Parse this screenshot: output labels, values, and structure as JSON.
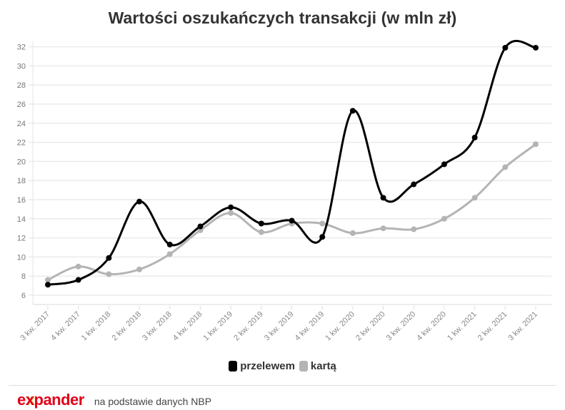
{
  "title": "Wartości oszukańczych transakcji (w mln zł)",
  "legend": {
    "items": [
      {
        "label": "przelewem",
        "color": "#000000"
      },
      {
        "label": "kartą",
        "color": "#b4b4b4"
      }
    ]
  },
  "footer": {
    "logo_prefix": "e",
    "logo_x": "x",
    "logo_suffix": "pander",
    "source": "na podstawie danych NBP"
  },
  "colors": {
    "grid": "#ebebeb",
    "axis": "#e6e6e6",
    "brand_red": "#e2001a"
  },
  "chart_data": {
    "type": "line",
    "title": "Wartości oszukańczych transakcji (w mln zł)",
    "xlabel": "",
    "ylabel": "",
    "ylim": [
      5,
      32
    ],
    "yticks": [
      6,
      8,
      10,
      12,
      14,
      16,
      18,
      20,
      22,
      24,
      26,
      28,
      30,
      32
    ],
    "grid": true,
    "legend_position": "bottom",
    "categories": [
      "3 kw. 2017",
      "4 kw. 2017",
      "1 kw. 2018",
      "2 kw. 2018",
      "3 kw. 2018",
      "4 kw. 2018",
      "1 kw. 2019",
      "2 kw. 2019",
      "3 kw. 2019",
      "4 kw. 2019",
      "1 kw. 2020",
      "2 kw. 2020",
      "3 kw. 2020",
      "4 kw. 2020",
      "1 kw. 2021",
      "2 kw. 2021",
      "3 kw. 2021"
    ],
    "series": [
      {
        "name": "przelewem",
        "color": "#000000",
        "values": [
          7.1,
          7.6,
          9.9,
          15.8,
          11.3,
          13.2,
          15.2,
          13.5,
          13.8,
          12.1,
          25.3,
          16.2,
          17.6,
          19.7,
          22.5,
          31.9,
          31.9
        ]
      },
      {
        "name": "kartą",
        "color": "#b4b4b4",
        "values": [
          7.6,
          9.0,
          8.2,
          8.7,
          10.3,
          12.8,
          14.6,
          12.6,
          13.5,
          13.5,
          12.5,
          13.0,
          12.9,
          14.0,
          16.2,
          19.4,
          21.8
        ]
      }
    ]
  }
}
